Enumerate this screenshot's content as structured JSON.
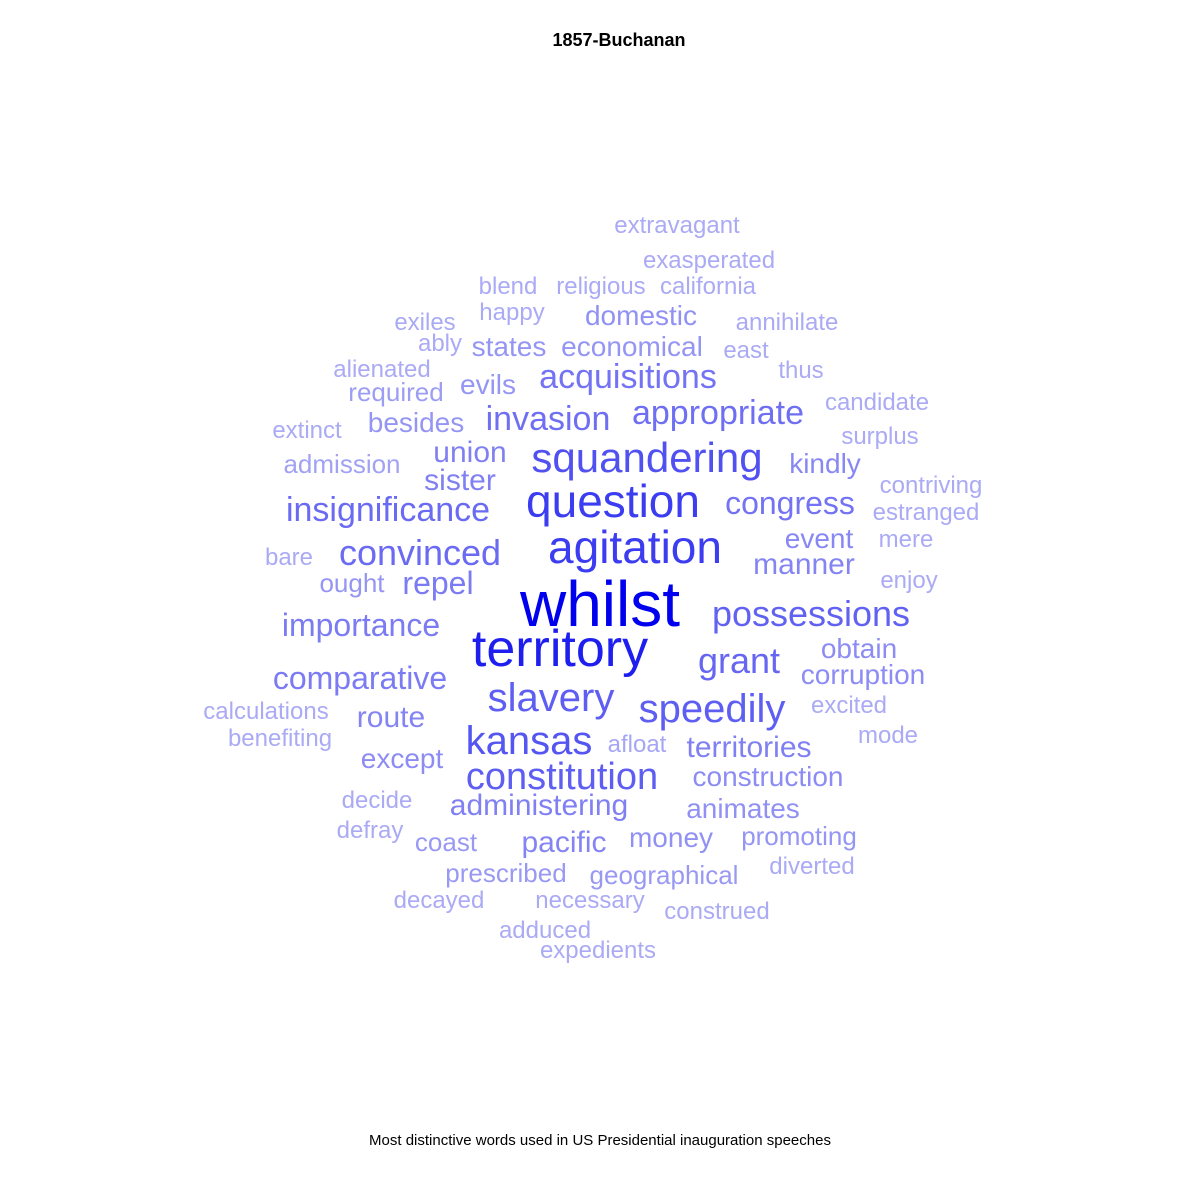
{
  "chart_data": {
    "type": "wordcloud",
    "title": "1857-Buchanan",
    "caption": "Most distinctive words used in US Presidential inauguration speeches",
    "color_scale": [
      "#aaaaf5",
      "#0000ee"
    ],
    "words": [
      {
        "text": "whilst",
        "weight": 1.0
      },
      {
        "text": "territory",
        "weight": 0.86
      },
      {
        "text": "question",
        "weight": 0.72
      },
      {
        "text": "agitation",
        "weight": 0.72
      },
      {
        "text": "squandering",
        "weight": 0.62
      },
      {
        "text": "kansas",
        "weight": 0.6
      },
      {
        "text": "constitution",
        "weight": 0.56
      },
      {
        "text": "slavery",
        "weight": 0.56
      },
      {
        "text": "possessions",
        "weight": 0.54
      },
      {
        "text": "speedily",
        "weight": 0.56
      },
      {
        "text": "insignificance",
        "weight": 0.5
      },
      {
        "text": "convinced",
        "weight": 0.5
      },
      {
        "text": "grant",
        "weight": 0.52
      },
      {
        "text": "invasion",
        "weight": 0.48
      },
      {
        "text": "appropriate",
        "weight": 0.48
      },
      {
        "text": "acquisitions",
        "weight": 0.46
      },
      {
        "text": "congress",
        "weight": 0.46
      },
      {
        "text": "comparative",
        "weight": 0.42
      },
      {
        "text": "importance",
        "weight": 0.42
      },
      {
        "text": "administering",
        "weight": 0.4
      },
      {
        "text": "territories",
        "weight": 0.4
      },
      {
        "text": "union",
        "weight": 0.4
      },
      {
        "text": "repel",
        "weight": 0.42
      },
      {
        "text": "sister",
        "weight": 0.4
      },
      {
        "text": "route",
        "weight": 0.38
      },
      {
        "text": "pacific",
        "weight": 0.38
      },
      {
        "text": "manner",
        "weight": 0.38
      },
      {
        "text": "kindly",
        "weight": 0.36
      },
      {
        "text": "event",
        "weight": 0.36
      },
      {
        "text": "obtain",
        "weight": 0.34
      },
      {
        "text": "corruption",
        "weight": 0.34
      },
      {
        "text": "construction",
        "weight": 0.34
      },
      {
        "text": "animates",
        "weight": 0.32
      },
      {
        "text": "money",
        "weight": 0.32
      },
      {
        "text": "except",
        "weight": 0.34
      },
      {
        "text": "domestic",
        "weight": 0.32
      },
      {
        "text": "economical",
        "weight": 0.3
      },
      {
        "text": "states",
        "weight": 0.3
      },
      {
        "text": "besides",
        "weight": 0.3
      },
      {
        "text": "evils",
        "weight": 0.3
      },
      {
        "text": "ought",
        "weight": 0.3
      },
      {
        "text": "promoting",
        "weight": 0.3
      },
      {
        "text": "geographical",
        "weight": 0.28
      },
      {
        "text": "prescribed",
        "weight": 0.28
      },
      {
        "text": "coast",
        "weight": 0.28
      },
      {
        "text": "required",
        "weight": 0.26
      },
      {
        "text": "admission",
        "weight": 0.24
      },
      {
        "text": "afloat",
        "weight": 0.22
      },
      {
        "text": "extravagant",
        "weight": 0.2
      },
      {
        "text": "exasperated",
        "weight": 0.2
      },
      {
        "text": "religious",
        "weight": 0.2
      },
      {
        "text": "california",
        "weight": 0.2
      },
      {
        "text": "blend",
        "weight": 0.2
      },
      {
        "text": "happy",
        "weight": 0.2
      },
      {
        "text": "exiles",
        "weight": 0.2
      },
      {
        "text": "ably",
        "weight": 0.2
      },
      {
        "text": "annihilate",
        "weight": 0.2
      },
      {
        "text": "east",
        "weight": 0.2
      },
      {
        "text": "alienated",
        "weight": 0.2
      },
      {
        "text": "thus",
        "weight": 0.2
      },
      {
        "text": "candidate",
        "weight": 0.2
      },
      {
        "text": "extinct",
        "weight": 0.2
      },
      {
        "text": "surplus",
        "weight": 0.2
      },
      {
        "text": "contriving",
        "weight": 0.2
      },
      {
        "text": "estranged",
        "weight": 0.2
      },
      {
        "text": "bare",
        "weight": 0.2
      },
      {
        "text": "mere",
        "weight": 0.2
      },
      {
        "text": "enjoy",
        "weight": 0.2
      },
      {
        "text": "calculations",
        "weight": 0.2
      },
      {
        "text": "benefiting",
        "weight": 0.2
      },
      {
        "text": "excited",
        "weight": 0.2
      },
      {
        "text": "mode",
        "weight": 0.2
      },
      {
        "text": "decide",
        "weight": 0.2
      },
      {
        "text": "defray",
        "weight": 0.2
      },
      {
        "text": "diverted",
        "weight": 0.2
      },
      {
        "text": "decayed",
        "weight": 0.2
      },
      {
        "text": "necessary",
        "weight": 0.2
      },
      {
        "text": "construed",
        "weight": 0.2
      },
      {
        "text": "adduced",
        "weight": 0.2
      },
      {
        "text": "expedients",
        "weight": 0.2
      }
    ]
  }
}
